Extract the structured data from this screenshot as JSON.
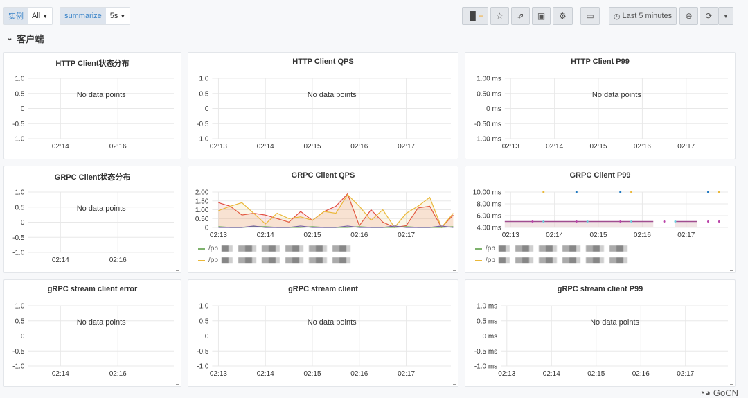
{
  "variables": [
    {
      "label": "实例",
      "value": "All"
    },
    {
      "label": "summarize",
      "value": "5s"
    }
  ],
  "toolbar": {
    "time_range": "Last 5 minutes",
    "icons": [
      "add-panel-icon",
      "star-icon",
      "share-icon",
      "save-icon",
      "gear-icon",
      "monitor-icon",
      "clock-icon",
      "zoom-out-icon",
      "refresh-icon",
      "caret-down-icon"
    ]
  },
  "row": {
    "title": "客户端"
  },
  "watermark": "GoCN",
  "panels": [
    {
      "title": "HTTP Client状态分布",
      "no_data": "No data points",
      "y_ticks": [
        "1.0",
        "0.5",
        "0",
        "-0.5",
        "-1.0"
      ],
      "x_ticks": [
        "02:14",
        "02:16"
      ]
    },
    {
      "title": "HTTP Client QPS",
      "no_data": "No data points",
      "y_ticks": [
        "1.0",
        "0.5",
        "0",
        "-0.5",
        "-1.0"
      ],
      "x_ticks": [
        "02:13",
        "02:14",
        "02:15",
        "02:16",
        "02:17"
      ]
    },
    {
      "title": "HTTP Client P99",
      "no_data": "No data points",
      "y_ticks": [
        "1.00 ms",
        "0.50 ms",
        "0 ms",
        "-0.50 ms",
        "-1.00 ms"
      ],
      "x_ticks": [
        "02:13",
        "02:14",
        "02:15",
        "02:16",
        "02:17"
      ]
    },
    {
      "title": "GRPC Client状态分布",
      "no_data": "No data points",
      "y_ticks": [
        "1.0",
        "0.5",
        "0",
        "-0.5",
        "-1.0"
      ],
      "x_ticks": [
        "02:14",
        "02:16"
      ]
    },
    {
      "title": "GRPC Client QPS",
      "y_ticks": [
        "2.00",
        "1.50",
        "1.00",
        "0.50",
        "0"
      ],
      "x_ticks": [
        "02:13",
        "02:14",
        "02:15",
        "02:16",
        "02:17"
      ],
      "legend": [
        {
          "label": "/pb",
          "color": "#7eb26d"
        },
        {
          "label": "/pb",
          "color": "#eab839"
        }
      ]
    },
    {
      "title": "GRPC Client P99",
      "y_ticks": [
        "10.00 ms",
        "8.00 ms",
        "6.00 ms",
        "4.00 ms"
      ],
      "x_ticks": [
        "02:13",
        "02:14",
        "02:15",
        "02:16",
        "02:17"
      ],
      "legend": [
        {
          "label": "/pb",
          "color": "#7eb26d"
        },
        {
          "label": "/pb",
          "color": "#eab839"
        }
      ]
    },
    {
      "title": "gRPC stream client error",
      "no_data": "No data points",
      "y_ticks": [
        "1.0",
        "0.5",
        "0",
        "-0.5",
        "-1.0"
      ],
      "x_ticks": [
        "02:14",
        "02:16"
      ]
    },
    {
      "title": "gRPC stream client",
      "no_data": "No data points",
      "y_ticks": [
        "1.0",
        "0.5",
        "0",
        "-0.5",
        "-1.0"
      ],
      "x_ticks": [
        "02:13",
        "02:14",
        "02:15",
        "02:16",
        "02:17"
      ]
    },
    {
      "title": "gRPC stream client P99",
      "no_data": "No data points",
      "y_ticks": [
        "1.0 ms",
        "0.5 ms",
        "0 ms",
        "-0.5 ms",
        "-1.0 ms"
      ],
      "x_ticks": [
        "02:13",
        "02:14",
        "02:15",
        "02:16",
        "02:17"
      ]
    }
  ],
  "chart_data": [
    {
      "panel": "GRPC Client QPS",
      "type": "area",
      "x_range": [
        "02:12:52",
        "02:17:57"
      ],
      "ylim": [
        0,
        2
      ],
      "x_start": "02:13:00",
      "x_step_seconds": 15,
      "series": [
        {
          "color": "#e24d42",
          "values": [
            1.4,
            1.2,
            0.7,
            0.8,
            0.7,
            0.5,
            0.3,
            0.9,
            0.4,
            0.9,
            1.2,
            1.9,
            0.1,
            1.0,
            0.3,
            0,
            0.1,
            1.1,
            1.2,
            0,
            0.7
          ]
        },
        {
          "color": "#eab839",
          "values": [
            0.95,
            1.2,
            1.4,
            0.8,
            0.2,
            0.8,
            0.5,
            0.6,
            0.4,
            0.9,
            0.8,
            1.85,
            1.2,
            0.4,
            1.0,
            0,
            0.8,
            1.2,
            1.7,
            0,
            0.8
          ]
        },
        {
          "color": "#7eb26d",
          "values": [
            0.05,
            0,
            0,
            0.05,
            0.05,
            0,
            0,
            0,
            0.05,
            0,
            0,
            0,
            0.05,
            0,
            0,
            0,
            0.05,
            0,
            0,
            0,
            0.05
          ]
        },
        {
          "color": "#705da0",
          "values": [
            0,
            0,
            0,
            0.08,
            0,
            0,
            0,
            0.08,
            0,
            0,
            0,
            0.08,
            0,
            0,
            0,
            0.08,
            0,
            0,
            0,
            0.08,
            0
          ]
        }
      ]
    },
    {
      "panel": "GRPC Client P99",
      "type": "scatter",
      "x_range": [
        "02:12:52",
        "02:17:57"
      ],
      "ylim": [
        4,
        10
      ],
      "fill_segments": [
        {
          "from": "02:12:52",
          "to": "02:16:15",
          "value": 5
        },
        {
          "from": "02:16:45",
          "to": "02:17:15",
          "value": 5
        }
      ],
      "series": [
        {
          "color": "#eab839",
          "points": [
            [
              "02:13:45",
              10
            ],
            [
              "02:15:45",
              10
            ],
            [
              "02:17:45",
              10
            ]
          ]
        },
        {
          "color": "#1f78c1",
          "points": [
            [
              "02:14:30",
              10
            ],
            [
              "02:15:30",
              10
            ],
            [
              "02:17:30",
              10
            ]
          ]
        },
        {
          "color": "#ba43a9",
          "points": [
            [
              "02:13:30",
              5
            ],
            [
              "02:14:30",
              5
            ],
            [
              "02:15:30",
              5
            ],
            [
              "02:16:30",
              5
            ],
            [
              "02:17:30",
              5
            ],
            [
              "02:17:45",
              5
            ]
          ]
        },
        {
          "color": "#6ed0e0",
          "points": [
            [
              "02:13:45",
              5
            ],
            [
              "02:14:45",
              5
            ],
            [
              "02:15:45",
              5
            ],
            [
              "02:16:45",
              5
            ]
          ]
        }
      ]
    }
  ]
}
